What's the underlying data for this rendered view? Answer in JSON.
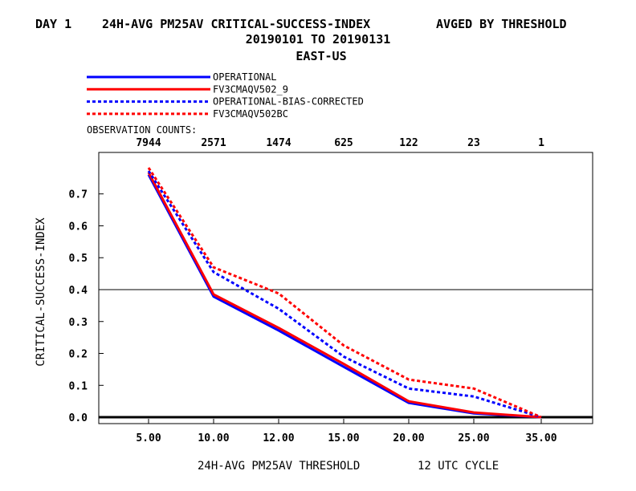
{
  "chart_data": {
    "type": "line",
    "title_line1_left": "DAY 1",
    "title_line1_main": "24H-AVG PM25AV CRITICAL-SUCCESS-INDEX",
    "title_line1_right": "AVGED BY THRESHOLD",
    "title_line2": "20190101 TO 20190131",
    "title_line3": "EAST-US",
    "xlabel": "24H-AVG PM25AV THRESHOLD",
    "xlabel_right": "12 UTC CYCLE",
    "ylabel": "CRITICAL-SUCCESS-INDEX",
    "categories": [
      "5.00",
      "10.00",
      "12.00",
      "15.00",
      "20.00",
      "25.00",
      "35.00"
    ],
    "observation_counts_label": "OBSERVATION COUNTS:",
    "observation_counts": [
      "7944",
      "2571",
      "1474",
      "625",
      "122",
      "23",
      "1"
    ],
    "ylim": [
      -0.02,
      0.83
    ],
    "yticks": [
      "0.0",
      "0.1",
      "0.2",
      "0.3",
      "0.4",
      "0.5",
      "0.6",
      "0.7"
    ],
    "reference_line_y": 0.4,
    "legend_placement": "top-left",
    "series": [
      {
        "name": "OPERATIONAL",
        "color": "#0000ff",
        "dashed": false,
        "values": [
          0.76,
          0.378,
          0.272,
          0.158,
          0.045,
          0.012,
          0.0
        ]
      },
      {
        "name": "FV3CMAQV502_9",
        "color": "#ff0000",
        "dashed": false,
        "values": [
          0.767,
          0.385,
          0.28,
          0.167,
          0.05,
          0.015,
          0.0
        ]
      },
      {
        "name": "OPERATIONAL-BIAS-CORRECTED",
        "color": "#0000ff",
        "dashed": true,
        "values": [
          0.772,
          0.455,
          0.34,
          0.19,
          0.09,
          0.065,
          0.0
        ]
      },
      {
        "name": "FV3CMAQV502BC",
        "color": "#ff0000",
        "dashed": true,
        "values": [
          0.782,
          0.47,
          0.388,
          0.225,
          0.118,
          0.09,
          0.0
        ]
      }
    ]
  }
}
